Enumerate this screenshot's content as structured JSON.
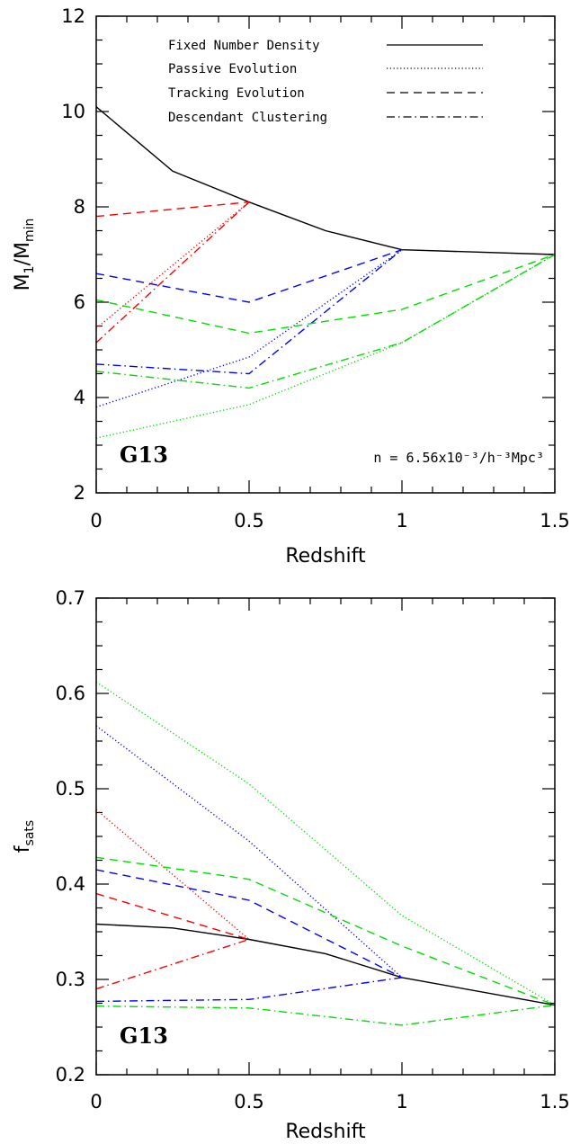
{
  "chart_data": [
    {
      "type": "line",
      "panel": "top",
      "xlabel": "Redshift",
      "ylabel_main": "M",
      "ylabel_sub1": "1",
      "ylabel_mid": "/M",
      "ylabel_sub2": "min",
      "xlim": [
        0,
        1.5
      ],
      "ylim": [
        2,
        12
      ],
      "xticks": [
        "0",
        "0.5",
        "1",
        "1.5"
      ],
      "yticks": [
        "2",
        "4",
        "6",
        "8",
        "10",
        "12"
      ],
      "tag": "G13",
      "annotation": "n = 6.56x10⁻³/h⁻³Mpc³",
      "legend": [
        {
          "label": "Fixed Number Density",
          "style": "solid"
        },
        {
          "label": "Passive Evolution",
          "style": "dotted"
        },
        {
          "label": "Tracking Evolution",
          "style": "dashed"
        },
        {
          "label": "Descendant Clustering",
          "style": "dashdot"
        }
      ],
      "series": [
        {
          "color": "#000000",
          "style": "solid",
          "x": [
            0,
            0.25,
            0.5,
            0.75,
            1.0,
            1.5
          ],
          "y": [
            10.1,
            8.75,
            8.1,
            7.5,
            7.1,
            7.0
          ]
        },
        {
          "color": "#ff0000",
          "style": "dashed",
          "x": [
            0,
            0.5
          ],
          "y": [
            7.8,
            8.1
          ]
        },
        {
          "color": "#ff0000",
          "style": "dotted",
          "x": [
            0,
            0.5
          ],
          "y": [
            5.45,
            8.1
          ]
        },
        {
          "color": "#ff0000",
          "style": "dashdot",
          "x": [
            0,
            0.5
          ],
          "y": [
            5.15,
            8.1
          ]
        },
        {
          "color": "#0000ff",
          "style": "dashed",
          "x": [
            0,
            0.5,
            1.0
          ],
          "y": [
            6.6,
            6.0,
            7.1
          ]
        },
        {
          "color": "#0000ff",
          "style": "dotted",
          "x": [
            0,
            0.5,
            1.0
          ],
          "y": [
            3.8,
            4.85,
            7.1
          ]
        },
        {
          "color": "#0000ff",
          "style": "dashdot",
          "x": [
            0,
            0.5,
            1.0
          ],
          "y": [
            4.7,
            4.5,
            7.1
          ]
        },
        {
          "color": "#00dd00",
          "style": "dashed",
          "x": [
            0,
            0.5,
            1.0,
            1.5
          ],
          "y": [
            6.05,
            5.35,
            5.85,
            7.0
          ]
        },
        {
          "color": "#00dd00",
          "style": "dotted",
          "x": [
            0,
            0.5,
            1.0,
            1.5
          ],
          "y": [
            3.15,
            3.85,
            5.15,
            7.0
          ]
        },
        {
          "color": "#00dd00",
          "style": "dashdot",
          "x": [
            0,
            0.5,
            1.0,
            1.5
          ],
          "y": [
            4.55,
            4.2,
            5.15,
            7.0
          ]
        }
      ]
    },
    {
      "type": "line",
      "panel": "bottom",
      "xlabel": "Redshift",
      "ylabel_main": "f",
      "ylabel_sub1": "sats",
      "xlim": [
        0,
        1.5
      ],
      "ylim": [
        0.2,
        0.7
      ],
      "xticks": [
        "0",
        "0.5",
        "1",
        "1.5"
      ],
      "yticks": [
        "0.2",
        "0.3",
        "0.4",
        "0.5",
        "0.6",
        "0.7"
      ],
      "tag": "G13",
      "series": [
        {
          "color": "#000000",
          "style": "solid",
          "x": [
            0,
            0.25,
            0.5,
            0.75,
            1.0,
            1.5
          ],
          "y": [
            0.358,
            0.354,
            0.342,
            0.327,
            0.302,
            0.273
          ]
        },
        {
          "color": "#ff0000",
          "style": "dashed",
          "x": [
            0,
            0.5
          ],
          "y": [
            0.39,
            0.342
          ]
        },
        {
          "color": "#ff0000",
          "style": "dotted",
          "x": [
            0,
            0.5
          ],
          "y": [
            0.478,
            0.342
          ]
        },
        {
          "color": "#ff0000",
          "style": "dashdot",
          "x": [
            0,
            0.5
          ],
          "y": [
            0.29,
            0.342
          ]
        },
        {
          "color": "#0000ff",
          "style": "dashed",
          "x": [
            0,
            0.5,
            1.0
          ],
          "y": [
            0.415,
            0.383,
            0.302
          ]
        },
        {
          "color": "#0000ff",
          "style": "dotted",
          "x": [
            0,
            0.5,
            1.0
          ],
          "y": [
            0.566,
            0.445,
            0.302
          ]
        },
        {
          "color": "#0000ff",
          "style": "dashdot",
          "x": [
            0,
            0.5,
            1.0
          ],
          "y": [
            0.277,
            0.279,
            0.302
          ]
        },
        {
          "color": "#00dd00",
          "style": "dashed",
          "x": [
            0,
            0.5,
            1.0,
            1.5
          ],
          "y": [
            0.428,
            0.405,
            0.335,
            0.273
          ]
        },
        {
          "color": "#00dd00",
          "style": "dotted",
          "x": [
            0,
            0.5,
            1.0,
            1.5
          ],
          "y": [
            0.612,
            0.505,
            0.367,
            0.273
          ]
        },
        {
          "color": "#00dd00",
          "style": "dashdot",
          "x": [
            0,
            0.5,
            1.0,
            1.5
          ],
          "y": [
            0.272,
            0.27,
            0.252,
            0.273
          ]
        }
      ]
    }
  ]
}
